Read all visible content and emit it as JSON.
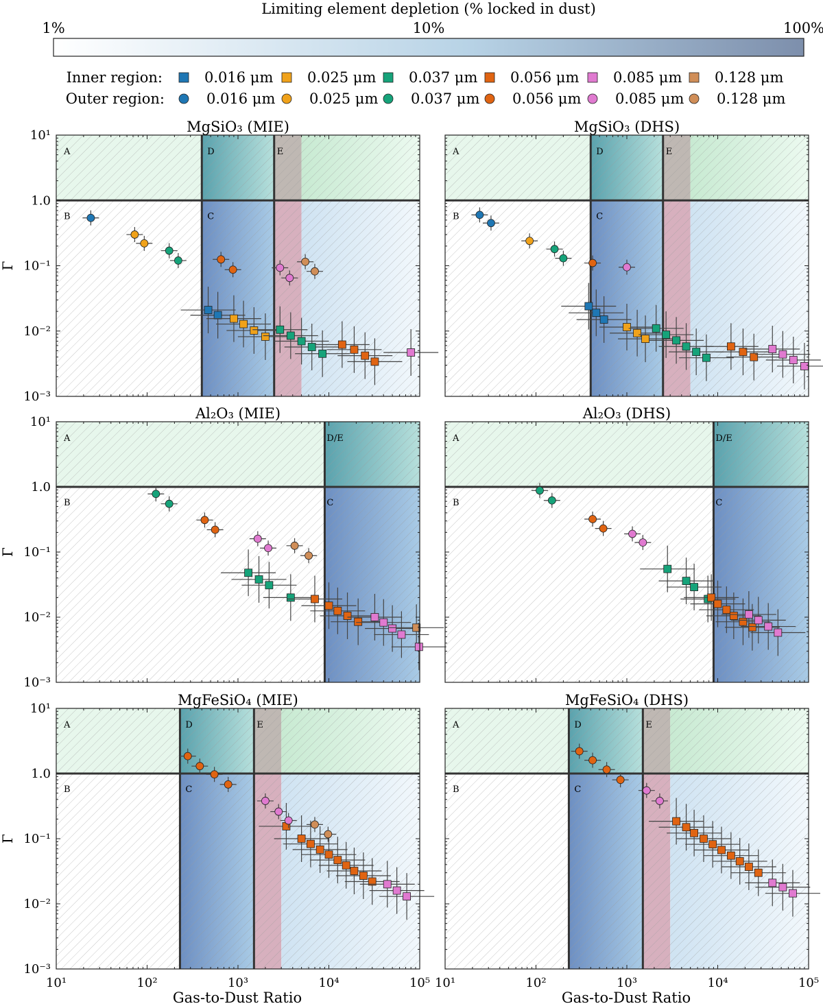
{
  "colorbar": {
    "title": "Limiting element depletion (% locked in dust)",
    "ticks": [
      "1%",
      "10%",
      "100%"
    ],
    "color_low": "#ffffff",
    "color_mid": "#b8d3e6",
    "color_high": "#7d8fac"
  },
  "legend": {
    "inner_label": "Inner region:",
    "outer_label": "Outer region:",
    "sizes": [
      "0.016 μm",
      "0.025 μm",
      "0.037 μm",
      "0.056 μm",
      "0.085 μm",
      "0.128 μm"
    ],
    "colors": [
      "#1f77b4",
      "#f0a21a",
      "#16a37a",
      "#e06412",
      "#e07ad0",
      "#d08e58"
    ]
  },
  "axes": {
    "xlabel": "Gas-to-Dust Ratio",
    "ylabel": "Γ",
    "xlim": [
      10,
      100000
    ],
    "ylim": [
      0.001,
      10
    ],
    "xtick_labels": [
      "10¹",
      "10²",
      "10³",
      "10⁴",
      "10⁵"
    ],
    "ytick_labels": [
      "10¹",
      "1.0",
      "10⁻¹",
      "10⁻²",
      "10⁻³"
    ],
    "region_labels": [
      "A",
      "B",
      "C",
      "D",
      "E",
      "D/E"
    ],
    "region_colors": {
      "green": "#d3f0dc",
      "teal": "#74bcc0",
      "blue": "#7fa3cf",
      "pink": "#c996a8",
      "lightblue": "#dcebf6"
    }
  },
  "chart_data": [
    {
      "type": "scatter",
      "title": "MgSiO₃ (MIE)",
      "boundaries": {
        "d_start": 400,
        "e_start": 2500,
        "e_end": 5000
      },
      "outer": [
        {
          "size": 0,
          "x": 24,
          "y": 0.54
        },
        {
          "size": 1,
          "x": 73,
          "y": 0.3
        },
        {
          "size": 1,
          "x": 93,
          "y": 0.22
        },
        {
          "size": 2,
          "x": 175,
          "y": 0.17
        },
        {
          "size": 2,
          "x": 220,
          "y": 0.12
        },
        {
          "size": 3,
          "x": 650,
          "y": 0.125
        },
        {
          "size": 3,
          "x": 880,
          "y": 0.087
        },
        {
          "size": 4,
          "x": 2900,
          "y": 0.093
        },
        {
          "size": 4,
          "x": 3700,
          "y": 0.065
        },
        {
          "size": 5,
          "x": 5500,
          "y": 0.115
        },
        {
          "size": 5,
          "x": 7000,
          "y": 0.082
        }
      ],
      "inner": [
        {
          "size": 0,
          "x": 470,
          "y": 0.021
        },
        {
          "size": 0,
          "x": 600,
          "y": 0.0175
        },
        {
          "size": 1,
          "x": 900,
          "y": 0.0155
        },
        {
          "size": 1,
          "x": 1150,
          "y": 0.0128
        },
        {
          "size": 1,
          "x": 1500,
          "y": 0.0102
        },
        {
          "size": 1,
          "x": 2000,
          "y": 0.0082
        },
        {
          "size": 2,
          "x": 2900,
          "y": 0.0105
        },
        {
          "size": 2,
          "x": 3800,
          "y": 0.0085
        },
        {
          "size": 2,
          "x": 5000,
          "y": 0.007
        },
        {
          "size": 2,
          "x": 6500,
          "y": 0.0057
        },
        {
          "size": 2,
          "x": 8500,
          "y": 0.0045
        },
        {
          "size": 3,
          "x": 14000,
          "y": 0.0062
        },
        {
          "size": 3,
          "x": 19000,
          "y": 0.0052
        },
        {
          "size": 3,
          "x": 25000,
          "y": 0.0042
        },
        {
          "size": 3,
          "x": 32000,
          "y": 0.0034
        },
        {
          "size": 4,
          "x": 80000,
          "y": 0.0047
        }
      ]
    },
    {
      "type": "scatter",
      "title": "MgSiO₃ (DHS)",
      "boundaries": {
        "d_start": 400,
        "e_start": 2500,
        "e_end": 5000
      },
      "outer": [
        {
          "size": 0,
          "x": 24,
          "y": 0.6
        },
        {
          "size": 0,
          "x": 32,
          "y": 0.45
        },
        {
          "size": 1,
          "x": 85,
          "y": 0.24
        },
        {
          "size": 2,
          "x": 160,
          "y": 0.18
        },
        {
          "size": 2,
          "x": 200,
          "y": 0.13
        },
        {
          "size": 3,
          "x": 420,
          "y": 0.11
        },
        {
          "size": 4,
          "x": 1000,
          "y": 0.095
        }
      ],
      "inner": [
        {
          "size": 0,
          "x": 380,
          "y": 0.024
        },
        {
          "size": 0,
          "x": 460,
          "y": 0.019
        },
        {
          "size": 0,
          "x": 560,
          "y": 0.015
        },
        {
          "size": 1,
          "x": 1000,
          "y": 0.0115
        },
        {
          "size": 1,
          "x": 1300,
          "y": 0.0093
        },
        {
          "size": 1,
          "x": 1600,
          "y": 0.0076
        },
        {
          "size": 2,
          "x": 2100,
          "y": 0.011
        },
        {
          "size": 2,
          "x": 2700,
          "y": 0.0088
        },
        {
          "size": 2,
          "x": 3500,
          "y": 0.0072
        },
        {
          "size": 2,
          "x": 4500,
          "y": 0.0058
        },
        {
          "size": 2,
          "x": 5800,
          "y": 0.0048
        },
        {
          "size": 2,
          "x": 7500,
          "y": 0.0039
        },
        {
          "size": 3,
          "x": 14000,
          "y": 0.0058
        },
        {
          "size": 3,
          "x": 19000,
          "y": 0.0048
        },
        {
          "size": 3,
          "x": 25000,
          "y": 0.004
        },
        {
          "size": 4,
          "x": 40000,
          "y": 0.0053
        },
        {
          "size": 4,
          "x": 52000,
          "y": 0.0044
        },
        {
          "size": 4,
          "x": 68000,
          "y": 0.0036
        },
        {
          "size": 4,
          "x": 90000,
          "y": 0.0029
        }
      ]
    },
    {
      "type": "scatter",
      "title": "Al₂O₃ (MIE)",
      "boundaries": {
        "de_start": 9000
      },
      "outer": [
        {
          "size": 2,
          "x": 125,
          "y": 0.78
        },
        {
          "size": 2,
          "x": 175,
          "y": 0.55
        },
        {
          "size": 3,
          "x": 430,
          "y": 0.31
        },
        {
          "size": 3,
          "x": 560,
          "y": 0.22
        },
        {
          "size": 4,
          "x": 1650,
          "y": 0.16
        },
        {
          "size": 4,
          "x": 2150,
          "y": 0.115
        },
        {
          "size": 5,
          "x": 4200,
          "y": 0.125
        },
        {
          "size": 5,
          "x": 6000,
          "y": 0.088
        }
      ],
      "inner": [
        {
          "size": 2,
          "x": 1300,
          "y": 0.048
        },
        {
          "size": 2,
          "x": 1700,
          "y": 0.038
        },
        {
          "size": 2,
          "x": 2200,
          "y": 0.031
        },
        {
          "size": 2,
          "x": 3800,
          "y": 0.02
        },
        {
          "size": 3,
          "x": 7000,
          "y": 0.019
        },
        {
          "size": 3,
          "x": 10000,
          "y": 0.015
        },
        {
          "size": 3,
          "x": 12500,
          "y": 0.0125
        },
        {
          "size": 3,
          "x": 16000,
          "y": 0.0105
        },
        {
          "size": 3,
          "x": 21000,
          "y": 0.0085
        },
        {
          "size": 4,
          "x": 32000,
          "y": 0.01
        },
        {
          "size": 4,
          "x": 40000,
          "y": 0.0083
        },
        {
          "size": 4,
          "x": 50000,
          "y": 0.0067
        },
        {
          "size": 4,
          "x": 63000,
          "y": 0.0054
        },
        {
          "size": 5,
          "x": 92000,
          "y": 0.0069
        },
        {
          "size": 4,
          "x": 98000,
          "y": 0.0035
        }
      ]
    },
    {
      "type": "scatter",
      "title": "Al₂O₃ (DHS)",
      "boundaries": {
        "de_start": 9000
      },
      "outer": [
        {
          "size": 2,
          "x": 110,
          "y": 0.88
        },
        {
          "size": 2,
          "x": 150,
          "y": 0.62
        },
        {
          "size": 3,
          "x": 420,
          "y": 0.32
        },
        {
          "size": 3,
          "x": 550,
          "y": 0.23
        },
        {
          "size": 4,
          "x": 1150,
          "y": 0.19
        },
        {
          "size": 4,
          "x": 1500,
          "y": 0.14
        }
      ],
      "inner": [
        {
          "size": 2,
          "x": 2800,
          "y": 0.055
        },
        {
          "size": 2,
          "x": 4500,
          "y": 0.036
        },
        {
          "size": 2,
          "x": 5500,
          "y": 0.029
        },
        {
          "size": 2,
          "x": 7800,
          "y": 0.019
        },
        {
          "size": 3,
          "x": 8500,
          "y": 0.02
        },
        {
          "size": 3,
          "x": 10000,
          "y": 0.016
        },
        {
          "size": 3,
          "x": 12500,
          "y": 0.013
        },
        {
          "size": 3,
          "x": 15000,
          "y": 0.0105
        },
        {
          "size": 3,
          "x": 19000,
          "y": 0.0085
        },
        {
          "size": 3,
          "x": 24000,
          "y": 0.007
        },
        {
          "size": 4,
          "x": 22000,
          "y": 0.011
        },
        {
          "size": 4,
          "x": 28000,
          "y": 0.009
        },
        {
          "size": 4,
          "x": 36000,
          "y": 0.0072
        },
        {
          "size": 4,
          "x": 46000,
          "y": 0.0058
        }
      ]
    },
    {
      "type": "scatter",
      "title": "MgFeSiO₄ (MIE)",
      "boundaries": {
        "d_start": 230,
        "e_start": 1500,
        "e_end": 3000
      },
      "outer": [
        {
          "size": 3,
          "x": 280,
          "y": 1.85
        },
        {
          "size": 3,
          "x": 380,
          "y": 1.3
        },
        {
          "size": 3,
          "x": 550,
          "y": 0.97
        },
        {
          "size": 3,
          "x": 780,
          "y": 0.68
        },
        {
          "size": 4,
          "x": 2000,
          "y": 0.38
        },
        {
          "size": 4,
          "x": 2800,
          "y": 0.26
        },
        {
          "size": 4,
          "x": 3600,
          "y": 0.19
        },
        {
          "size": 5,
          "x": 7000,
          "y": 0.165
        },
        {
          "size": 5,
          "x": 9800,
          "y": 0.117
        }
      ],
      "inner": [
        {
          "size": 3,
          "x": 3400,
          "y": 0.155
        },
        {
          "size": 3,
          "x": 5000,
          "y": 0.1
        },
        {
          "size": 3,
          "x": 6300,
          "y": 0.083
        },
        {
          "size": 3,
          "x": 8000,
          "y": 0.068
        },
        {
          "size": 3,
          "x": 10000,
          "y": 0.057
        },
        {
          "size": 3,
          "x": 12500,
          "y": 0.047
        },
        {
          "size": 3,
          "x": 15500,
          "y": 0.039
        },
        {
          "size": 3,
          "x": 19000,
          "y": 0.032
        },
        {
          "size": 3,
          "x": 24000,
          "y": 0.027
        },
        {
          "size": 3,
          "x": 30000,
          "y": 0.022
        },
        {
          "size": 4,
          "x": 44000,
          "y": 0.02
        },
        {
          "size": 4,
          "x": 56000,
          "y": 0.016
        },
        {
          "size": 4,
          "x": 72000,
          "y": 0.013
        }
      ]
    },
    {
      "type": "scatter",
      "title": "MgFeSiO₄ (DHS)",
      "boundaries": {
        "d_start": 230,
        "e_start": 1500,
        "e_end": 3000
      },
      "outer": [
        {
          "size": 3,
          "x": 300,
          "y": 2.2
        },
        {
          "size": 3,
          "x": 420,
          "y": 1.6
        },
        {
          "size": 3,
          "x": 600,
          "y": 1.15
        },
        {
          "size": 3,
          "x": 850,
          "y": 0.8
        },
        {
          "size": 4,
          "x": 1650,
          "y": 0.55
        },
        {
          "size": 4,
          "x": 2300,
          "y": 0.38
        }
      ],
      "inner": [
        {
          "size": 3,
          "x": 3500,
          "y": 0.185
        },
        {
          "size": 3,
          "x": 4500,
          "y": 0.15
        },
        {
          "size": 3,
          "x": 5500,
          "y": 0.122
        },
        {
          "size": 3,
          "x": 7000,
          "y": 0.1
        },
        {
          "size": 3,
          "x": 8800,
          "y": 0.082
        },
        {
          "size": 3,
          "x": 11000,
          "y": 0.067
        },
        {
          "size": 3,
          "x": 14000,
          "y": 0.055
        },
        {
          "size": 3,
          "x": 17500,
          "y": 0.045
        },
        {
          "size": 3,
          "x": 22000,
          "y": 0.037
        },
        {
          "size": 3,
          "x": 28000,
          "y": 0.03
        },
        {
          "size": 4,
          "x": 40000,
          "y": 0.021
        },
        {
          "size": 4,
          "x": 52000,
          "y": 0.018
        },
        {
          "size": 4,
          "x": 67000,
          "y": 0.0145
        }
      ]
    }
  ]
}
